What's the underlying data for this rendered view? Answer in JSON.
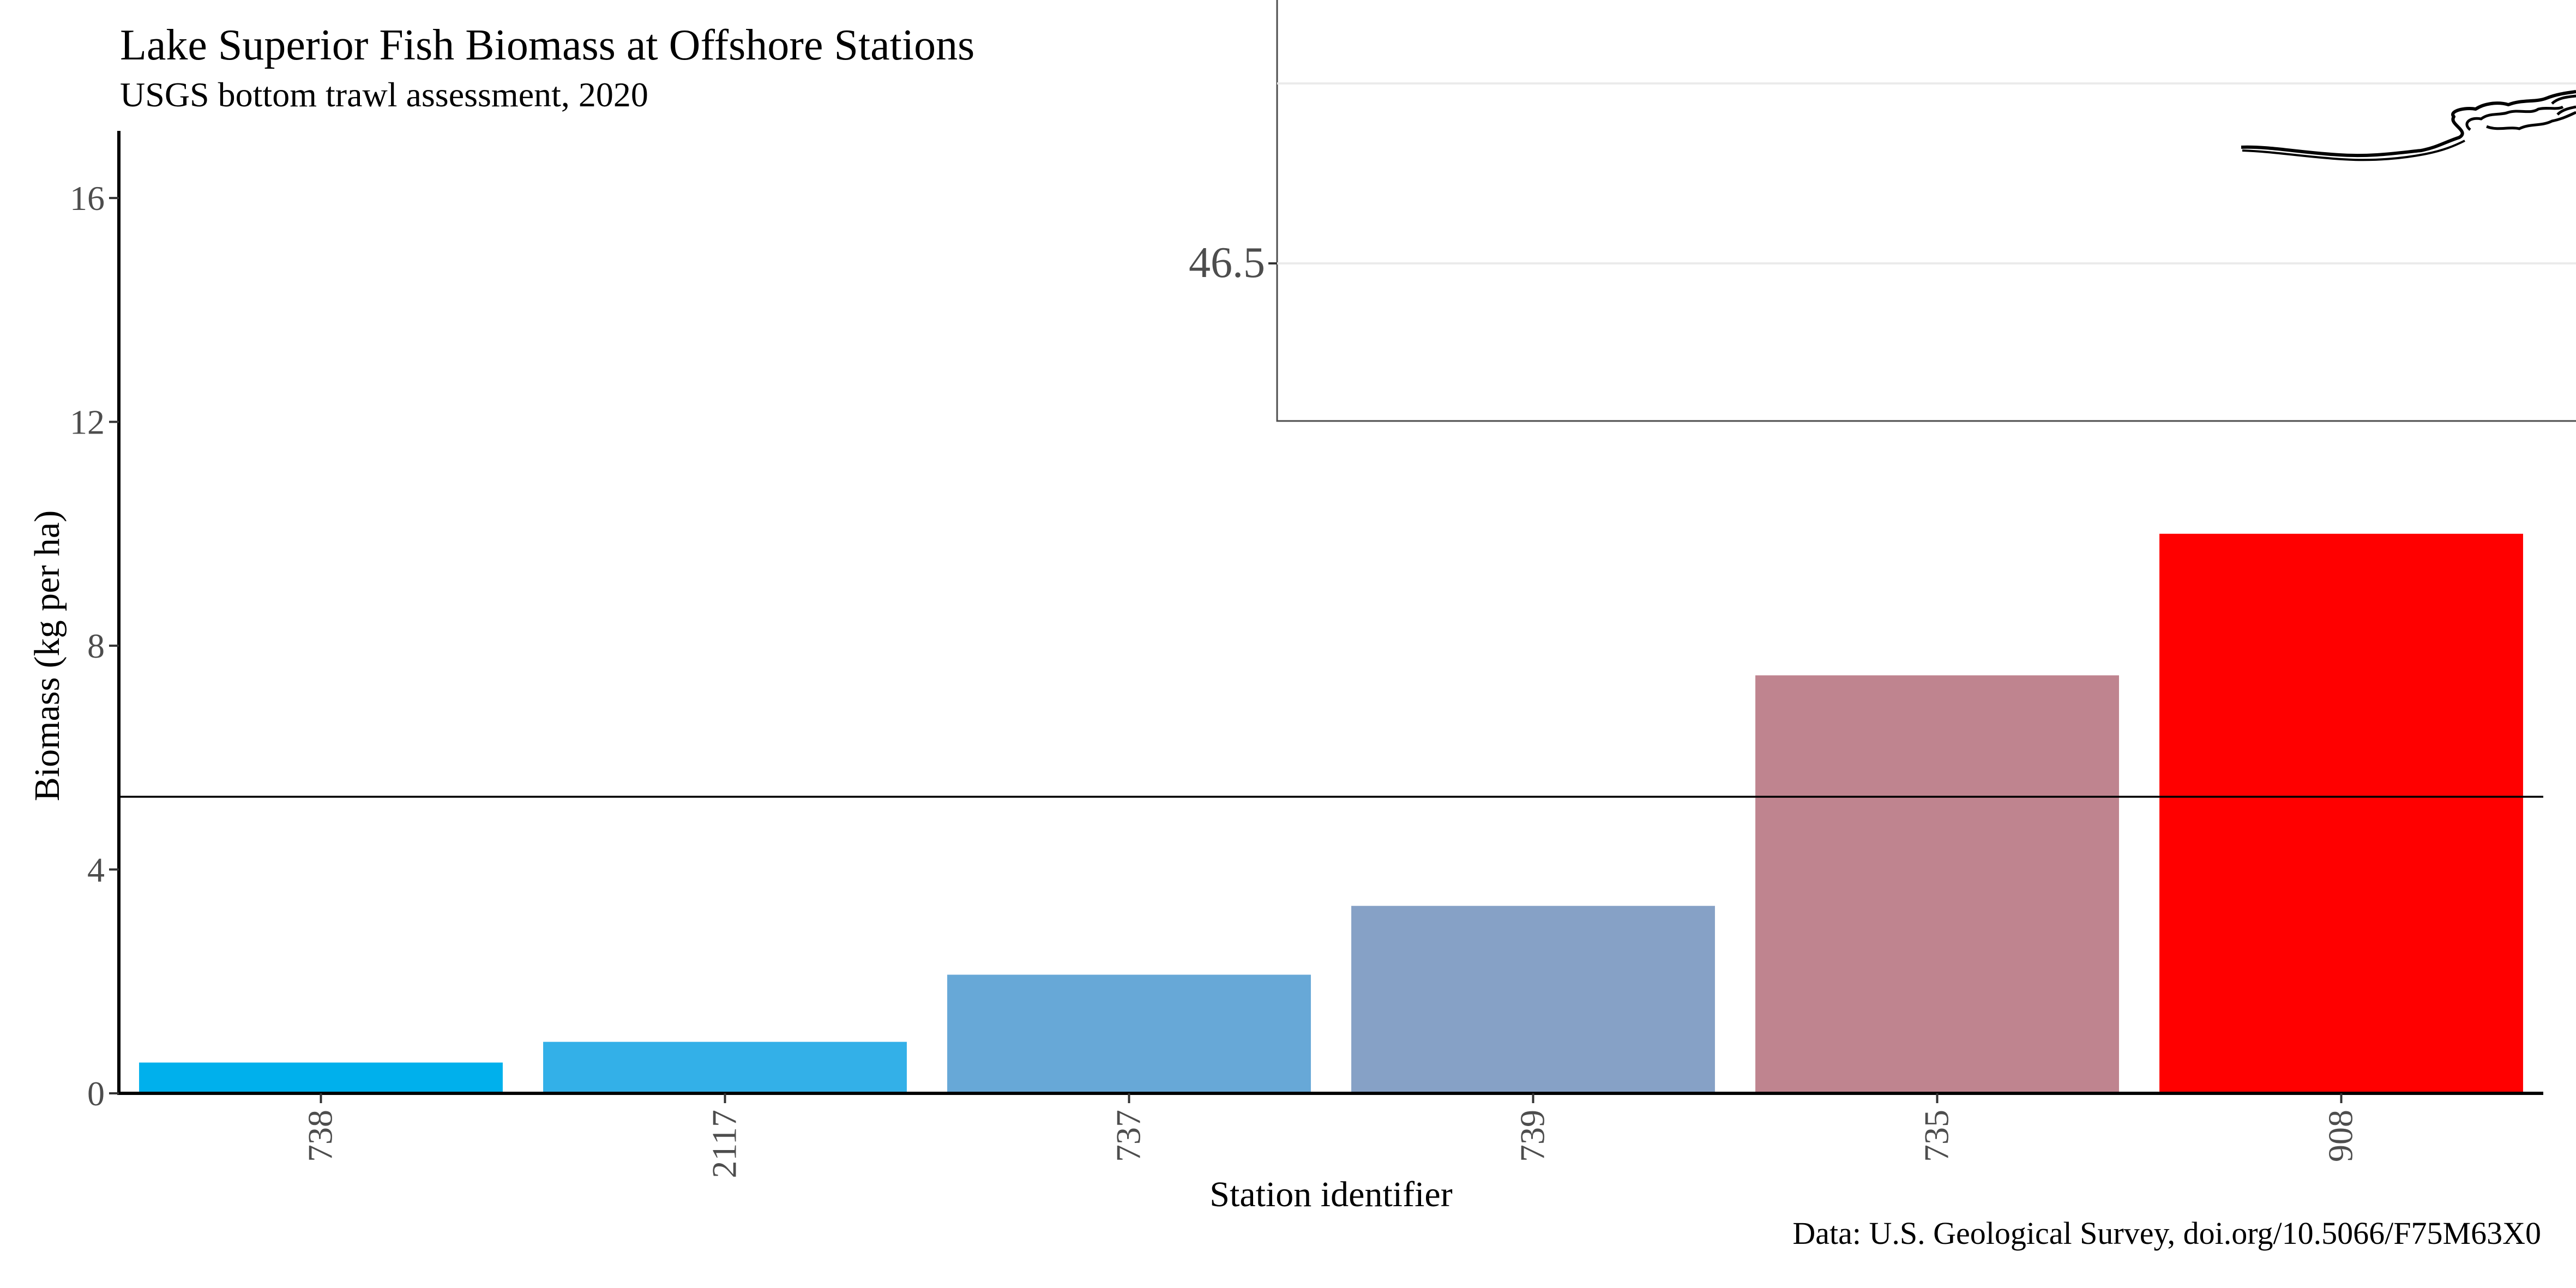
{
  "title": "Lake Superior Fish Biomass at Offshore Stations",
  "subtitle": "USGS bottom trawl assessment, 2020",
  "caption": "Data: U.S. Geological Survey, doi.org/10.5066/F75M63X0",
  "chart_data": {
    "type": "bar",
    "title": "Lake Superior Fish Biomass at Offshore Stations",
    "subtitle": "USGS bottom trawl assessment, 2020",
    "xlabel": "Station identifier",
    "ylabel": "Biomass (kg per ha)",
    "categories": [
      "738",
      "2117",
      "737",
      "739",
      "735",
      "908"
    ],
    "values": [
      0.55,
      0.92,
      2.12,
      3.35,
      7.47,
      10.0
    ],
    "bar_colors": [
      "#00B0EC",
      "#33B0E8",
      "#67A8D7",
      "#86A1C6",
      "#BF848F",
      "#FF0000"
    ],
    "ylim": [
      0,
      17.2
    ],
    "yticks": [
      0,
      4,
      8,
      12,
      16
    ],
    "reference_line": {
      "y": 5.3,
      "color": "#000000"
    },
    "grid": false,
    "legend": "none",
    "inset": {
      "type": "map",
      "description": "Partial map outline of Lake Superior shoreline",
      "ytick_label": "46.5",
      "grid": true
    }
  }
}
